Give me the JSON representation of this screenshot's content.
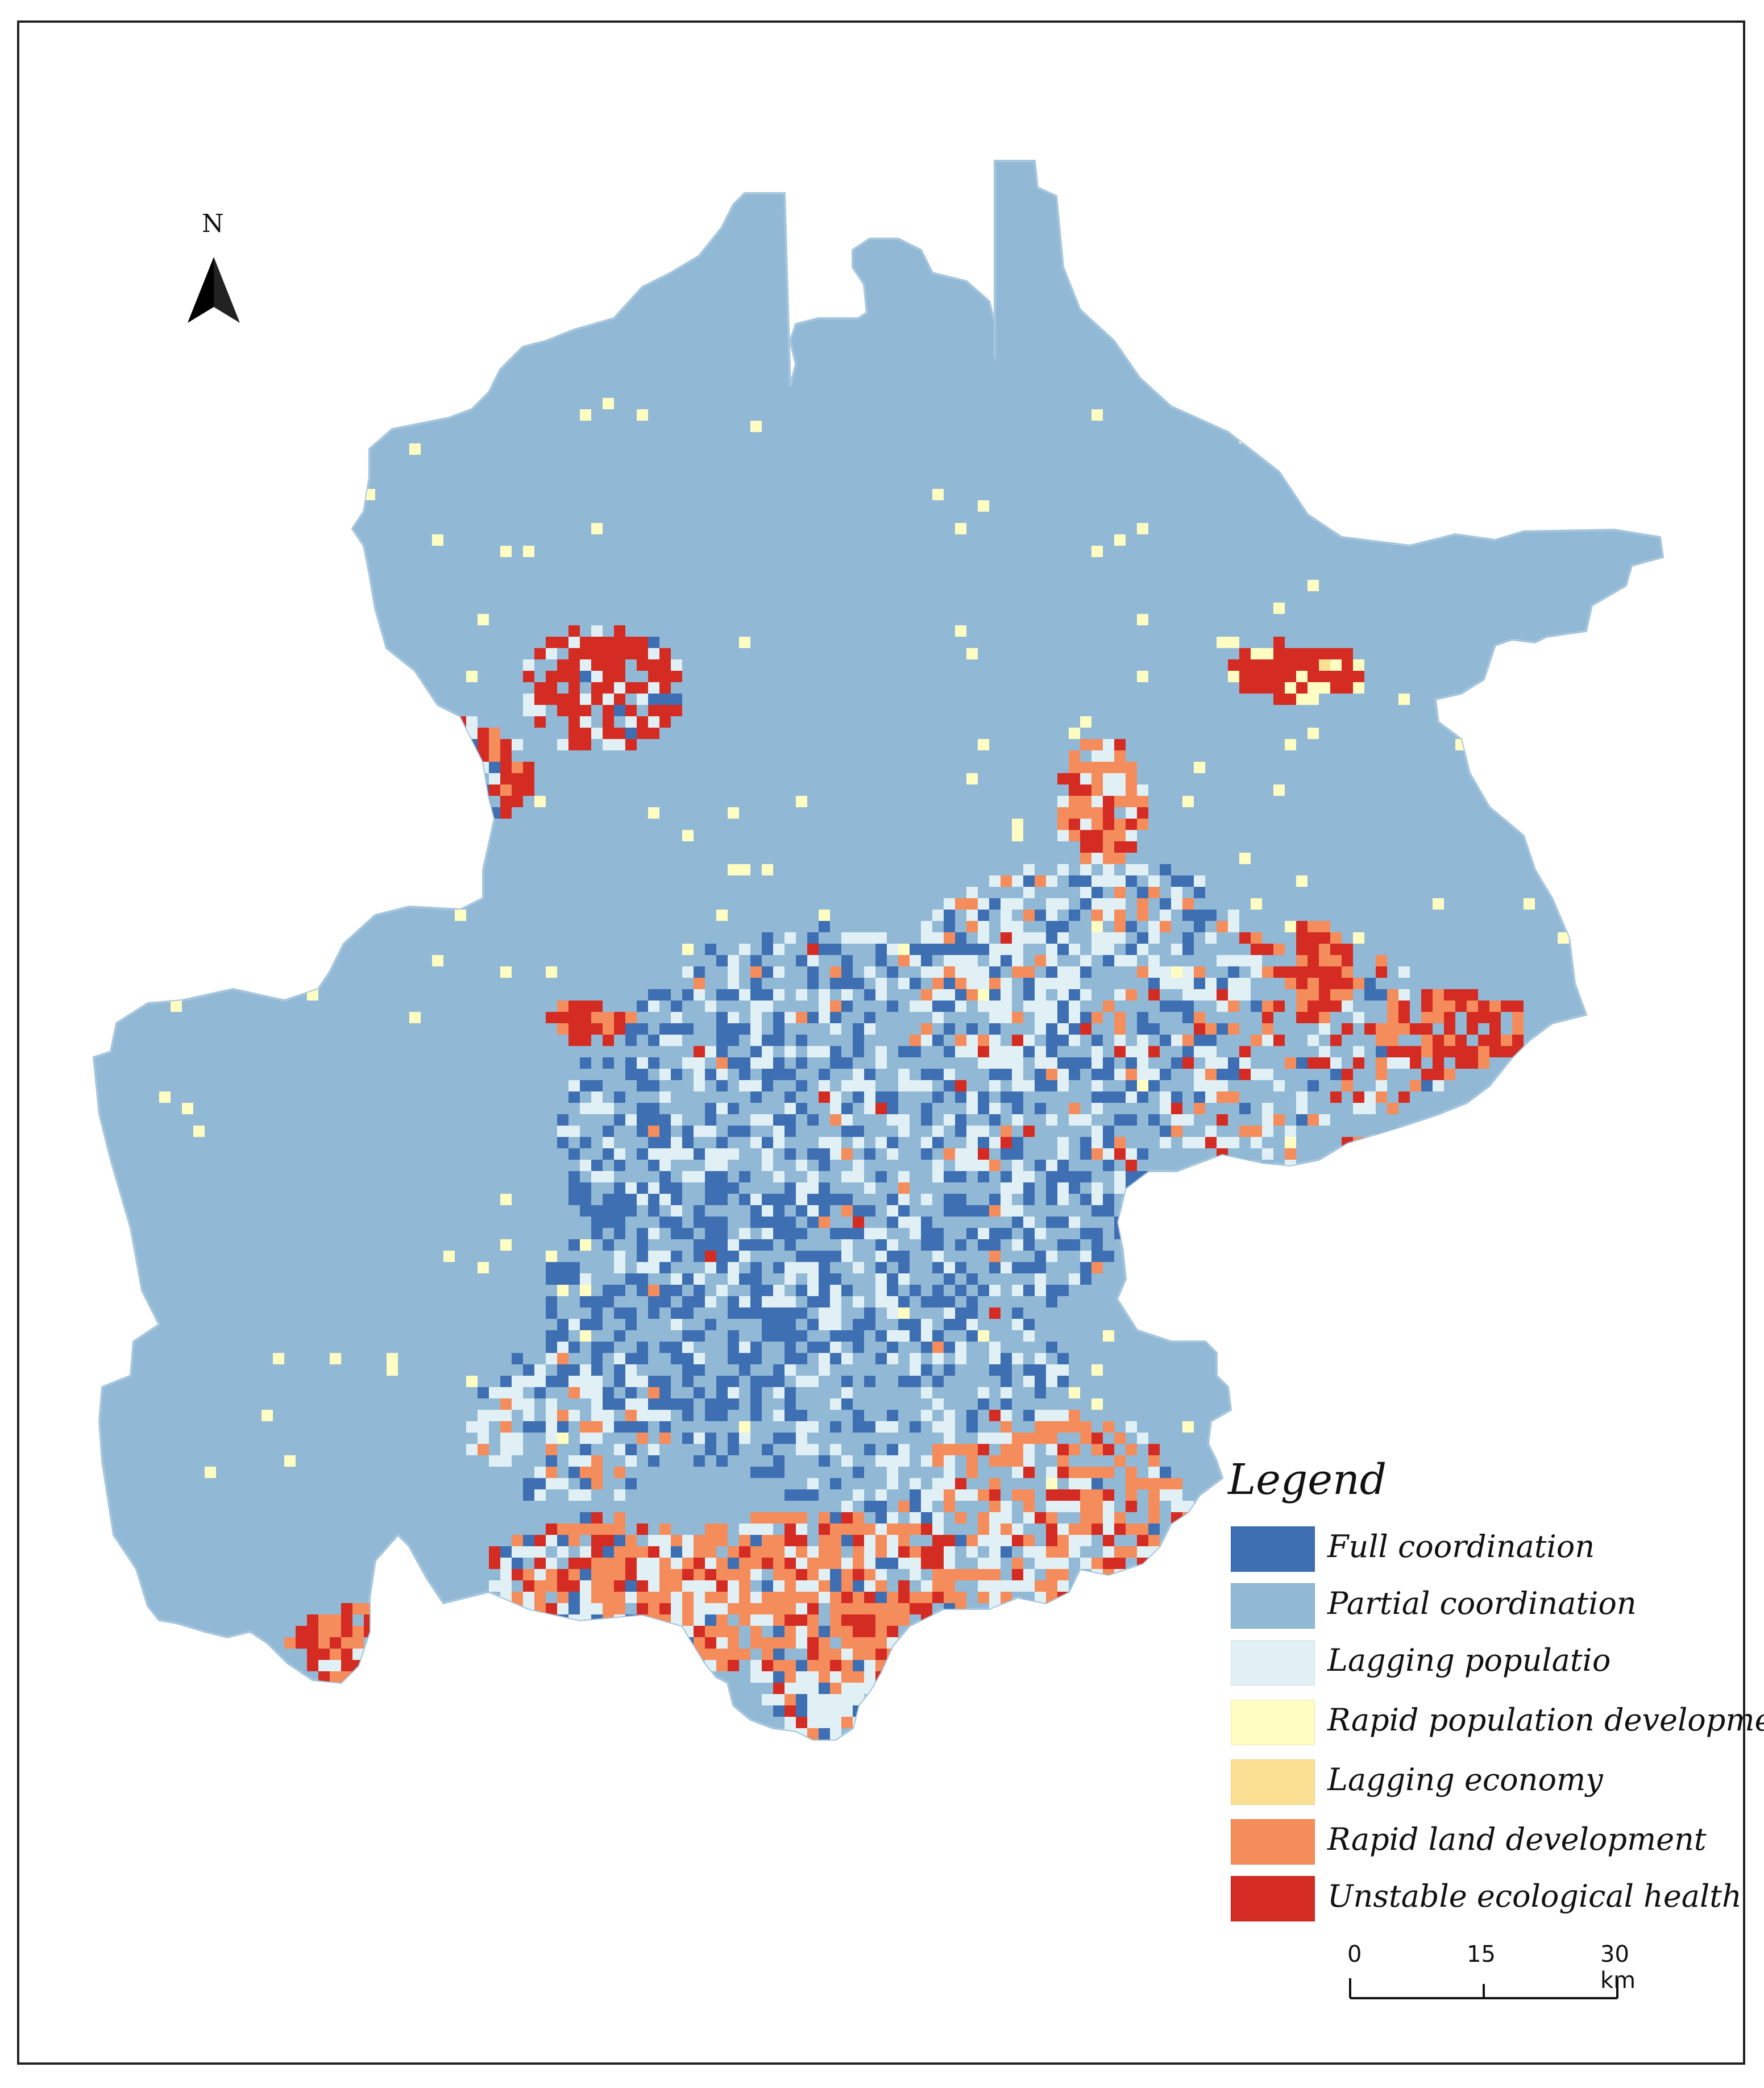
{
  "map": {
    "north_label": "N",
    "category_colors": {
      "full": "#3f6fb3",
      "partial": "#91b9d6",
      "lagging_population": "#e1f0f5",
      "rapid_population": "#fffdc1",
      "lagging_economy": "#fbe093",
      "rapid_land": "#f58c5c",
      "unstable_ecology": "#d42b23"
    }
  },
  "legend": {
    "title": "Legend",
    "items": [
      {
        "label": "Full coordination",
        "color": "#3f6fb3"
      },
      {
        "label": "Partial coordination",
        "color": "#91b9d6"
      },
      {
        "label": "Lagging populatio",
        "color": "#e1f0f5"
      },
      {
        "label": "Rapid population development",
        "color": "#fffdc1"
      },
      {
        "label": "Lagging economy",
        "color": "#fbe093"
      },
      {
        "label": "Rapid land development",
        "color": "#f58c5c"
      },
      {
        "label": "Unstable ecological health",
        "color": "#d42b23"
      }
    ]
  },
  "scale_bar": {
    "labels": [
      "0",
      "15",
      "30 km"
    ]
  }
}
